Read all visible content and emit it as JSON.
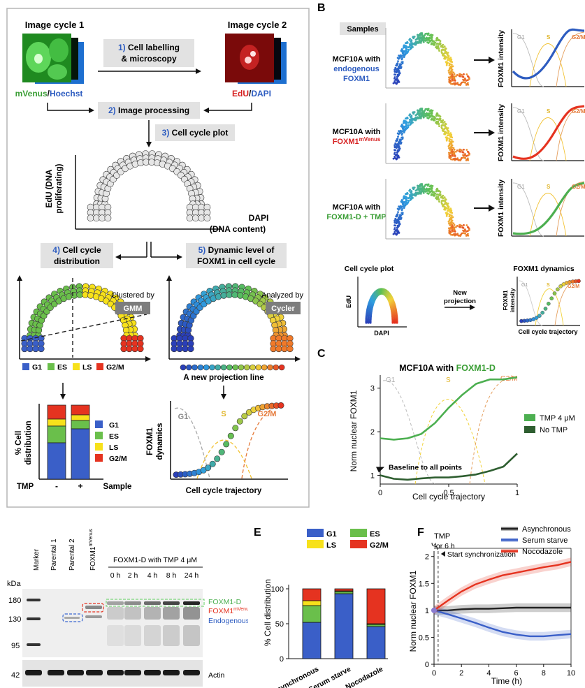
{
  "panelA": {
    "cycle1": "Image cycle 1",
    "cycle2": "Image cycle 2",
    "label_left_a": "mVenus",
    "label_left_sep": "/",
    "label_left_b": "Hoechst",
    "label_right_a": "EdU",
    "label_right_sep": "/",
    "label_right_b": "DAPI",
    "step1_num": "1)",
    "step1_a": "Cell labelling",
    "step1_b": "& microscopy",
    "step2_num": "2)",
    "step2": "Image processing",
    "step3_num": "3)",
    "step3": "Cell cycle plot",
    "yaxis_a": "EdU (DNA",
    "yaxis_b": "proliferating)",
    "xaxis_a": "DAPI",
    "xaxis_b": "(DNA content)",
    "step4_num": "4)",
    "step4_a": "Cell cycle",
    "step4_b": "distribution",
    "step5_num": "5)",
    "step5_a": "Dynamic level of",
    "step5_b": "FOXM1 in cell cycle",
    "clustered": "Clustered by",
    "gmm": "GMM",
    "analyzed": "Analyzed by",
    "cycler": "Cycler",
    "legend": [
      "G1",
      "ES",
      "LS",
      "G2/M"
    ],
    "new_line": "A new projection line",
    "bar_ylabel_a": "% Cell",
    "bar_ylabel_b": "distribution",
    "bar_tmp": "TMP",
    "bar_minus": "-",
    "bar_plus": "+",
    "bar_sample": "Sample",
    "dyn_ylabel_a": "FOXM1",
    "dyn_ylabel_b": "dynamics",
    "dyn_xlabel": "Cell cycle trajectory",
    "phase_g1": "G1",
    "phase_s": "S",
    "phase_g2m": "G2/M"
  },
  "panelB": {
    "letter": "B",
    "samples": "Samples",
    "rows": [
      {
        "line1": "MCF10A with",
        "line2": "endogenous",
        "line3": "FOXM1",
        "ylabel": "FOXM1 intensity"
      },
      {
        "line1": "MCF10A with",
        "line2": "FOXM1",
        "line2_sup": "mVenus",
        "ylabel": "FOXM1 intensity"
      },
      {
        "line1": "MCF10A with",
        "line2": "FOXM1-D + TMP",
        "ylabel": "FOXM1 intensity"
      }
    ],
    "phase_g1": "G1",
    "phase_s": "S",
    "phase_g2m": "G2/M",
    "bottom_left_title": "Cell cycle plot",
    "bottom_left_y": "EdU",
    "bottom_left_x": "DAPI",
    "new_a": "New",
    "new_b": "projection",
    "bottom_right_title": "FOXM1 dynamics",
    "bottom_right_y_a": "FOXM1",
    "bottom_right_y_b": "intensity",
    "bottom_right_x": "Cell cycle trajectory"
  },
  "panelC": {
    "letter": "C",
    "title_a": "MCF10A with ",
    "title_b": "FOXM1-D",
    "ylabel": "Norm nuclear FOXM1",
    "xlabel": "Cell cycle trajectory",
    "annotation": "Baseline to all points",
    "legend": [
      "TMP 4 μM",
      "No TMP"
    ],
    "chart_data": {
      "type": "line",
      "xlim": [
        0,
        1
      ],
      "ylim": [
        0.8,
        3.3
      ],
      "xticks": [
        "0",
        "0.5",
        "1"
      ],
      "yticks": [
        "1",
        "2",
        "3"
      ],
      "phase_labels": [
        "G1",
        "S",
        "G2/M"
      ],
      "series": [
        {
          "name": "TMP 4 μM",
          "color": "#4caf50",
          "x": [
            0,
            0.1,
            0.2,
            0.3,
            0.4,
            0.5,
            0.6,
            0.7,
            0.8,
            0.9,
            1.0
          ],
          "y": [
            1.85,
            1.82,
            1.85,
            1.95,
            2.2,
            2.55,
            2.85,
            3.1,
            3.2,
            3.2,
            3.25
          ]
        },
        {
          "name": "No TMP",
          "color": "#2e5e30",
          "x": [
            0,
            0.1,
            0.2,
            0.3,
            0.4,
            0.5,
            0.6,
            0.7,
            0.8,
            0.9,
            1.0
          ],
          "y": [
            1.0,
            0.92,
            0.9,
            0.93,
            0.95,
            0.95,
            0.98,
            1.02,
            1.1,
            1.2,
            1.5
          ]
        }
      ]
    }
  },
  "panelD": {
    "marker": "Marker",
    "lanes": [
      "Parental 1",
      "Parental 2",
      "FOXM1"
    ],
    "lane3_sup": "mVenus",
    "group": "FOXM1-D with TMP 4 μM",
    "times": [
      "0 h",
      "2 h",
      "4 h",
      "8 h",
      "24 h"
    ],
    "kda": "kDa",
    "mw": [
      "180",
      "130",
      "95",
      "42"
    ],
    "band_d": "FOXM1-D",
    "band_v": "FOXM1",
    "band_v_sup": "mVenus",
    "band_e": "Endogenous",
    "actin": "Actin"
  },
  "panelE": {
    "letter": "E",
    "ylabel": "% Cell distribution",
    "chart_data": {
      "type": "bar",
      "stacked": true,
      "categories": [
        "Asynchronous",
        "Serum starve",
        "Nocodazole"
      ],
      "ylim": [
        0,
        100
      ],
      "yticks": [
        "0",
        "50",
        "100"
      ],
      "series": [
        {
          "name": "G1",
          "color": "#3a5fc8",
          "values": [
            52,
            93,
            46
          ]
        },
        {
          "name": "ES",
          "color": "#6abf4b",
          "values": [
            24,
            3,
            3
          ]
        },
        {
          "name": "LS",
          "color": "#f7e11b",
          "values": [
            7,
            1,
            1
          ]
        },
        {
          "name": "G2/M",
          "color": "#e53320",
          "values": [
            17,
            3,
            50
          ]
        }
      ]
    }
  },
  "panelF": {
    "letter": "F",
    "tmp_a": "TMP",
    "tmp_b": "for 6 h",
    "annotation": "Start synchronization",
    "ylabel": "Norm nuclear FOXM1",
    "xlabel": "Time (h)",
    "chart_data": {
      "type": "line",
      "xlim": [
        0,
        10
      ],
      "ylim": [
        0,
        2.1
      ],
      "xticks": [
        "0",
        "2",
        "4",
        "6",
        "8",
        "10"
      ],
      "yticks": [
        "0",
        "0.5",
        "1",
        "1.5",
        "2"
      ],
      "series": [
        {
          "name": "Asynchronous",
          "color": "#222222",
          "x": [
            0,
            1,
            2,
            3,
            4,
            5,
            6,
            7,
            8,
            9,
            10
          ],
          "y": [
            1.0,
            1.0,
            1.02,
            1.03,
            1.03,
            1.04,
            1.05,
            1.05,
            1.05,
            1.05,
            1.05
          ]
        },
        {
          "name": "Serum starve",
          "color": "#3a5fc8",
          "x": [
            0,
            1,
            2,
            3,
            4,
            5,
            6,
            7,
            8,
            9,
            10
          ],
          "y": [
            1.0,
            0.93,
            0.85,
            0.77,
            0.68,
            0.6,
            0.55,
            0.52,
            0.52,
            0.54,
            0.56
          ]
        },
        {
          "name": "Nocodazole",
          "color": "#e53320",
          "x": [
            0,
            1,
            2,
            3,
            4,
            5,
            6,
            7,
            8,
            9,
            10
          ],
          "y": [
            1.0,
            1.18,
            1.35,
            1.48,
            1.57,
            1.65,
            1.7,
            1.75,
            1.8,
            1.84,
            1.9
          ]
        }
      ]
    }
  }
}
